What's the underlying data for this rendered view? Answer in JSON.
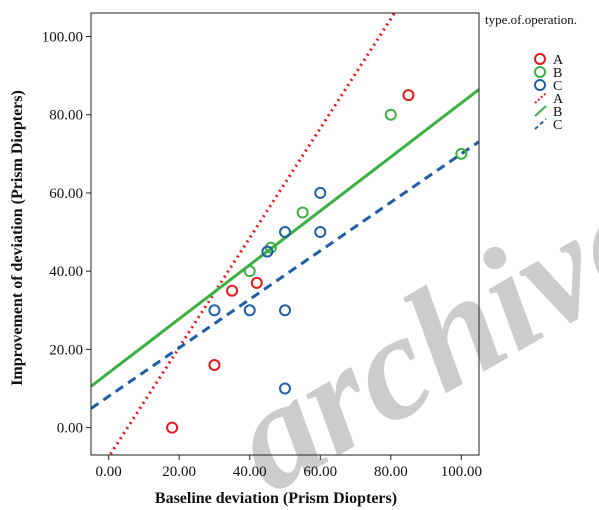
{
  "chart_data": {
    "type": "scatter",
    "xlabel": "Baseline deviation (Prism Diopters)",
    "ylabel": "Improvement of deviation (Prism Diopters)",
    "xlim": [
      -5,
      105
    ],
    "ylim": [
      -7,
      106
    ],
    "x_ticks": [
      0,
      20,
      40,
      60,
      80,
      100
    ],
    "x_tick_labels": [
      "0.00",
      "20.00",
      "40.00",
      "60.00",
      "80.00",
      "100.00"
    ],
    "y_ticks": [
      0,
      20,
      40,
      60,
      80,
      100
    ],
    "y_tick_labels": [
      "0.00",
      "20.00",
      "40.00",
      "60.00",
      "80.00",
      "100.00"
    ],
    "grid": false,
    "legend": {
      "placement": "top-right, outside plot",
      "title": "type.of.operation.",
      "entries": [
        {
          "label": "A",
          "kind": "marker",
          "series": "A"
        },
        {
          "label": "B",
          "kind": "marker",
          "series": "B"
        },
        {
          "label": "C",
          "kind": "marker",
          "series": "C"
        },
        {
          "label": "A",
          "kind": "line",
          "series": "A"
        },
        {
          "label": "B",
          "kind": "line",
          "series": "B"
        },
        {
          "label": "C",
          "kind": "line",
          "series": "C"
        }
      ]
    },
    "series": [
      {
        "name": "A",
        "color": "#e41a1c",
        "line_style": "dotted",
        "points": [
          [
            18,
            0
          ],
          [
            30,
            16
          ],
          [
            35,
            35
          ],
          [
            42,
            37
          ],
          [
            85,
            85
          ]
        ],
        "fit": {
          "slope": 1.4,
          "intercept": -7.5
        }
      },
      {
        "name": "B",
        "color": "#3cb043",
        "line_style": "solid",
        "points": [
          [
            40,
            40
          ],
          [
            46,
            46
          ],
          [
            55,
            55
          ],
          [
            80,
            80
          ],
          [
            100,
            70
          ]
        ],
        "fit": {
          "slope": 0.69,
          "intercept": 14
        }
      },
      {
        "name": "C",
        "color": "#1f5fa8",
        "line_style": "dashed",
        "points": [
          [
            30,
            30
          ],
          [
            40,
            30
          ],
          [
            45,
            45
          ],
          [
            50,
            50
          ],
          [
            50,
            30
          ],
          [
            50,
            10
          ],
          [
            60,
            60
          ],
          [
            60,
            50
          ]
        ],
        "fit": {
          "slope": 0.62,
          "intercept": 8
        }
      }
    ],
    "watermark_text": "archive"
  }
}
